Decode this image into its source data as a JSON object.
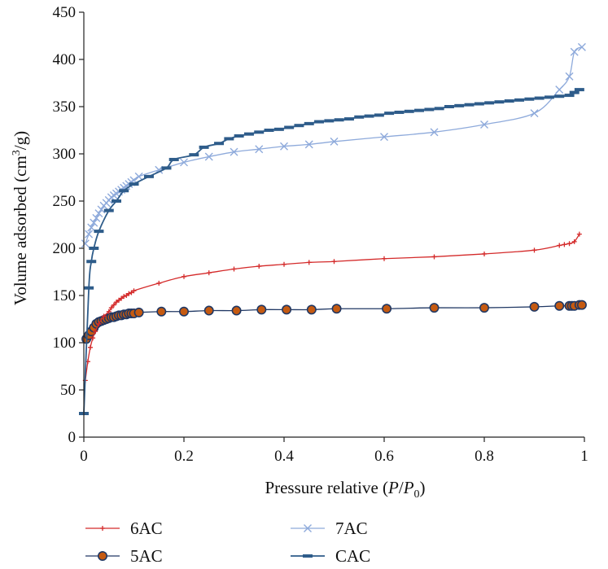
{
  "chart_data": {
    "type": "line",
    "title": "",
    "xlabel": "Pressure relative (P/P0)",
    "xlabel_parts": {
      "prefix": "Pressure relative (",
      "p": "P",
      "slash": "/",
      "p0": "P",
      "sub": "0",
      "suffix": ")"
    },
    "ylabel": "Volume adsorbed (cm3/g)",
    "ylabel_parts": {
      "prefix": "Volume adsorbed (cm",
      "sup": "3",
      "suffix": "/g)"
    },
    "xlim": [
      0,
      1
    ],
    "ylim": [
      0,
      450
    ],
    "x_ticks": [
      0,
      0.2,
      0.4,
      0.6,
      0.8,
      1
    ],
    "x_tick_labels": [
      "0",
      "0.2",
      "0.4",
      "0.6",
      "0.8",
      "1"
    ],
    "y_ticks": [
      0,
      50,
      100,
      150,
      200,
      250,
      300,
      350,
      400,
      450
    ],
    "y_tick_labels": [
      "0",
      "50",
      "100",
      "150",
      "200",
      "250",
      "300",
      "350",
      "400",
      "450"
    ],
    "grid": false,
    "legend_position": "bottom",
    "series": [
      {
        "name": "6AC",
        "color": "#d42a2a",
        "marker": "plus",
        "x": [
          0.003,
          0.008,
          0.013,
          0.018,
          0.023,
          0.03,
          0.04,
          0.05,
          0.055,
          0.06,
          0.065,
          0.07,
          0.075,
          0.08,
          0.085,
          0.09,
          0.095,
          0.1,
          0.15,
          0.2,
          0.25,
          0.3,
          0.35,
          0.4,
          0.45,
          0.5,
          0.6,
          0.7,
          0.8,
          0.9,
          0.95,
          0.96,
          0.97,
          0.98,
          0.99
        ],
        "y": [
          60,
          80,
          95,
          105,
          112,
          120,
          128,
          133,
          137,
          140,
          143,
          145,
          147,
          149,
          150,
          152,
          153,
          155,
          163,
          170,
          174,
          178,
          181,
          183,
          185,
          186,
          189,
          191,
          194,
          198,
          203,
          204,
          205,
          207,
          215
        ]
      },
      {
        "name": "5AC",
        "color": "#203864",
        "fill": "#c55a11",
        "marker": "circle",
        "x": [
          0.005,
          0.01,
          0.015,
          0.02,
          0.025,
          0.03,
          0.035,
          0.04,
          0.045,
          0.05,
          0.055,
          0.06,
          0.065,
          0.07,
          0.075,
          0.08,
          0.085,
          0.09,
          0.095,
          0.1,
          0.11,
          0.155,
          0.2,
          0.25,
          0.305,
          0.355,
          0.405,
          0.455,
          0.505,
          0.605,
          0.7,
          0.8,
          0.9,
          0.95,
          0.97,
          0.975,
          0.98,
          0.99,
          0.995
        ],
        "y": [
          104,
          108,
          112,
          116,
          120,
          122,
          123,
          124,
          125,
          126,
          127,
          127,
          128,
          129,
          129,
          130,
          130,
          131,
          131,
          131,
          132,
          133,
          133,
          134,
          134,
          135,
          135,
          135,
          136,
          136,
          137,
          137,
          138,
          139,
          139,
          139,
          139,
          140,
          140
        ]
      },
      {
        "name": "7AC",
        "color": "#8eaadb",
        "marker": "cross",
        "x": [
          0.003,
          0.01,
          0.015,
          0.02,
          0.025,
          0.03,
          0.035,
          0.04,
          0.045,
          0.05,
          0.055,
          0.06,
          0.065,
          0.07,
          0.075,
          0.08,
          0.085,
          0.09,
          0.095,
          0.1,
          0.11,
          0.15,
          0.2,
          0.25,
          0.3,
          0.35,
          0.4,
          0.45,
          0.5,
          0.6,
          0.7,
          0.8,
          0.9,
          0.95,
          0.97,
          0.98,
          0.995
        ],
        "y": [
          205,
          215,
          222,
          227,
          232,
          237,
          241,
          245,
          248,
          251,
          254,
          256,
          258,
          260,
          262,
          264,
          266,
          268,
          270,
          272,
          276,
          283,
          291,
          297,
          302,
          305,
          308,
          310,
          313,
          318,
          323,
          331,
          343,
          368,
          382,
          408,
          413
        ]
      },
      {
        "name": "CAC",
        "color": "#2e5c8a",
        "marker": "dash",
        "x": [
          0.0,
          0.01,
          0.015,
          0.02,
          0.03,
          0.05,
          0.065,
          0.08,
          0.1,
          0.13,
          0.165,
          0.18,
          0.22,
          0.24,
          0.27,
          0.29,
          0.31,
          0.33,
          0.35,
          0.37,
          0.39,
          0.41,
          0.43,
          0.45,
          0.47,
          0.49,
          0.51,
          0.53,
          0.55,
          0.57,
          0.59,
          0.61,
          0.63,
          0.65,
          0.67,
          0.69,
          0.71,
          0.73,
          0.75,
          0.77,
          0.79,
          0.81,
          0.83,
          0.85,
          0.87,
          0.89,
          0.91,
          0.93,
          0.95,
          0.97,
          0.98,
          0.99
        ],
        "y": [
          25,
          158,
          186,
          200,
          218,
          240,
          250,
          261,
          268,
          276,
          285,
          294,
          299,
          307,
          311,
          316,
          319,
          321,
          323,
          325,
          326,
          328,
          330,
          332,
          334,
          335,
          336,
          337,
          339,
          340,
          341,
          343,
          344,
          345,
          346,
          347,
          348,
          350,
          351,
          352,
          353,
          354,
          355,
          356,
          357,
          358,
          359,
          360,
          361,
          362,
          365,
          368
        ]
      }
    ]
  }
}
